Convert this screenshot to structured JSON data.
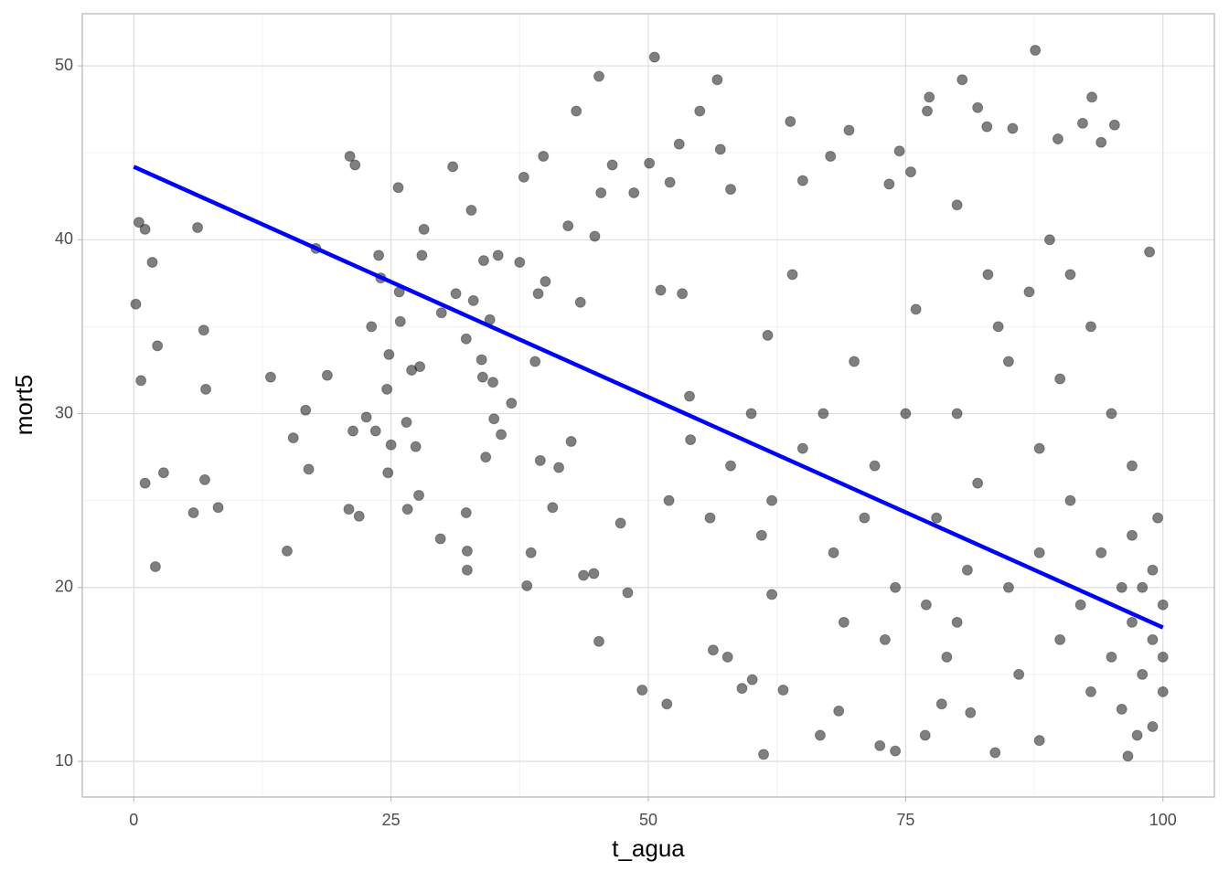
{
  "chart_data": {
    "type": "scatter",
    "x_label": "t_agua",
    "y_label": "mort5",
    "xlim": [
      -5,
      105
    ],
    "ylim": [
      7.95,
      53.0
    ],
    "xticks": [
      0,
      25,
      50,
      75,
      100
    ],
    "yticks": [
      10,
      20,
      30,
      40,
      50
    ],
    "xminor": [
      12.5,
      37.5,
      62.5,
      87.5
    ],
    "yminor": [
      15,
      25,
      35,
      45
    ],
    "grid": true,
    "series": [
      {
        "type": "scatter",
        "color": "#000000",
        "x": [
          0.2,
          0.5,
          0.7,
          1.1,
          1.1,
          1.8,
          2.1,
          2.3,
          2.9,
          5.8,
          6.2,
          6.8,
          6.9,
          7,
          8.2,
          13.3,
          14.9,
          15.5,
          16.7,
          17,
          17.7,
          18.8,
          20.9,
          21,
          21.3,
          21.5,
          21.9,
          22.6,
          23.1,
          23.5,
          23.8,
          24,
          24.6,
          24.7,
          24.8,
          25,
          25.7,
          25.8,
          25.9,
          26.5,
          26.6,
          27,
          27.4,
          27.7,
          27.8,
          28,
          28.2,
          29.8,
          29.9,
          31,
          31.3,
          32.3,
          32.4,
          32.4,
          32.3,
          32.8,
          33,
          33.8,
          33.9,
          34,
          34.2,
          34.6,
          34.9,
          35,
          35.4,
          35.7,
          36.7,
          37.5,
          37.9,
          38.2,
          38.6,
          39,
          39.3,
          39.5,
          39.8,
          40,
          40.7,
          41.3,
          42.2,
          42.5,
          43,
          43.4,
          43.7,
          44.7,
          44.8,
          45.2,
          45.2,
          45.4,
          46.5,
          47.3,
          48,
          48.6,
          49.4,
          50.1,
          50.6,
          51.2,
          51.8,
          52.1,
          53,
          53.3,
          54.1,
          55,
          56.3,
          56.7,
          57,
          57.7,
          58,
          59.1,
          60.1,
          61.2,
          61.6,
          62,
          63.1,
          63.8,
          65,
          66.7,
          67.7,
          68.5,
          69.5,
          72.5,
          73.4,
          74,
          74.4,
          75.5,
          76.9,
          77.1,
          77.3,
          78.5,
          80,
          80.5,
          81.3,
          82,
          82.9,
          83.7,
          85.4,
          87.6,
          88,
          89.8,
          92.2,
          93.1,
          94,
          95.3,
          96.6,
          97.5,
          98.7,
          60,
          62,
          65,
          68,
          70,
          72,
          74,
          75,
          76,
          78,
          80,
          80,
          82,
          84,
          85,
          86,
          88,
          88,
          90,
          90,
          91,
          92,
          93,
          94,
          95,
          96,
          96,
          97,
          97,
          98,
          98,
          99,
          99,
          99,
          100,
          100,
          100,
          99.5,
          97,
          95,
          93,
          91,
          89,
          87,
          85,
          83,
          81,
          79,
          77,
          73,
          71,
          69,
          67,
          64,
          61,
          58,
          56,
          54,
          52
        ],
        "values": [
          36.3,
          41,
          31.9,
          26,
          40.6,
          38.7,
          21.2,
          33.9,
          26.6,
          24.3,
          40.7,
          34.8,
          26.2,
          31.4,
          24.6,
          32.1,
          22.1,
          28.6,
          30.2,
          26.8,
          39.5,
          32.2,
          24.5,
          44.8,
          29,
          44.3,
          24.1,
          29.8,
          35,
          29,
          39.1,
          37.8,
          31.4,
          26.6,
          33.4,
          28.2,
          43,
          37,
          35.3,
          29.5,
          24.5,
          32.5,
          28.1,
          25.3,
          32.7,
          39.1,
          40.6,
          22.8,
          35.8,
          44.2,
          36.9,
          24.3,
          22.1,
          21,
          34.3,
          41.7,
          36.5,
          33.1,
          32.1,
          38.8,
          27.5,
          35.4,
          31.8,
          29.7,
          39.1,
          28.8,
          30.6,
          38.7,
          43.6,
          20.1,
          22,
          33,
          36.9,
          27.3,
          44.8,
          37.6,
          24.6,
          26.9,
          40.8,
          28.4,
          47.4,
          36.4,
          20.7,
          20.8,
          40.2,
          16.9,
          49.4,
          42.7,
          44.3,
          23.7,
          19.7,
          42.7,
          14.1,
          44.4,
          50.5,
          37.1,
          13.3,
          43.3,
          45.5,
          36.9,
          28.5,
          47.4,
          16.4,
          49.2,
          45.2,
          16,
          42.9,
          14.2,
          14.7,
          10.4,
          34.5,
          19.6,
          14.1,
          46.8,
          43.4,
          11.5,
          44.8,
          12.9,
          46.3,
          10.9,
          43.2,
          10.6,
          45.1,
          43.9,
          11.5,
          47.4,
          48.2,
          13.3,
          42,
          49.2,
          12.8,
          47.6,
          46.5,
          10.5,
          46.4,
          50.9,
          11.2,
          45.8,
          46.7,
          48.2,
          45.6,
          46.6,
          10.3,
          11.5,
          39.3,
          30,
          25,
          28,
          22,
          33,
          27,
          20,
          30,
          36,
          24,
          18,
          30,
          26,
          35,
          20,
          15,
          28,
          22,
          17,
          32,
          25,
          19,
          14,
          22,
          16,
          20,
          13,
          18,
          23,
          15,
          20,
          17,
          12,
          21,
          16,
          19,
          14,
          24,
          27,
          30,
          35,
          38,
          40,
          37,
          33,
          38,
          21,
          16,
          19,
          17,
          24,
          18,
          30,
          38,
          23,
          27,
          24,
          31,
          25
        ]
      },
      {
        "type": "line",
        "color": "#0000ff",
        "x": [
          0,
          100
        ],
        "values": [
          44.2,
          17.7
        ]
      }
    ]
  }
}
